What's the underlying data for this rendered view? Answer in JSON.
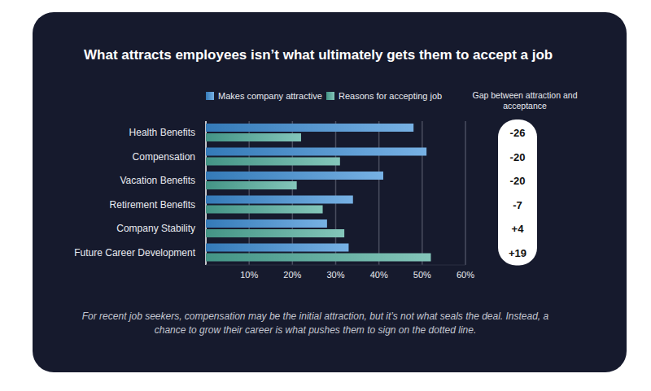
{
  "chart_data": {
    "type": "bar",
    "orientation": "horizontal",
    "title": "What attracts employees isn’t what ultimately gets them to accept a job",
    "categories": [
      "Health Benefits",
      "Compensation",
      "Vacation Benefits",
      "Retirement Benefits",
      "Company Stability",
      "Future Career Development"
    ],
    "series": [
      {
        "name": "Makes company attractive",
        "color": "#3d8fd8",
        "values": [
          48,
          51,
          41,
          34,
          28,
          33
        ]
      },
      {
        "name": "Reasons for accepting job",
        "color": "#4fae9c",
        "values": [
          22,
          31,
          21,
          27,
          32,
          52
        ]
      }
    ],
    "xlim": [
      0,
      60
    ],
    "xticks": [
      {
        "value": 10,
        "label": "10%"
      },
      {
        "value": 20,
        "label": "20%"
      },
      {
        "value": 30,
        "label": "30%"
      },
      {
        "value": 40,
        "label": "40%"
      },
      {
        "value": 50,
        "label": "50%"
      },
      {
        "value": 60,
        "label": "60%"
      }
    ],
    "grid": true,
    "legend": "top",
    "gap_label": "Gap between attraction and acceptance",
    "gap_labels": [
      "-26",
      "-20",
      "-20",
      "-7",
      "+4",
      "+19"
    ],
    "annotations": [
      "For recent job seekers, compensation may be the initial attraction, but it’s not what seals the deal. Instead, a chance to grow their career is what pushes them to sign on the dotted line."
    ]
  }
}
